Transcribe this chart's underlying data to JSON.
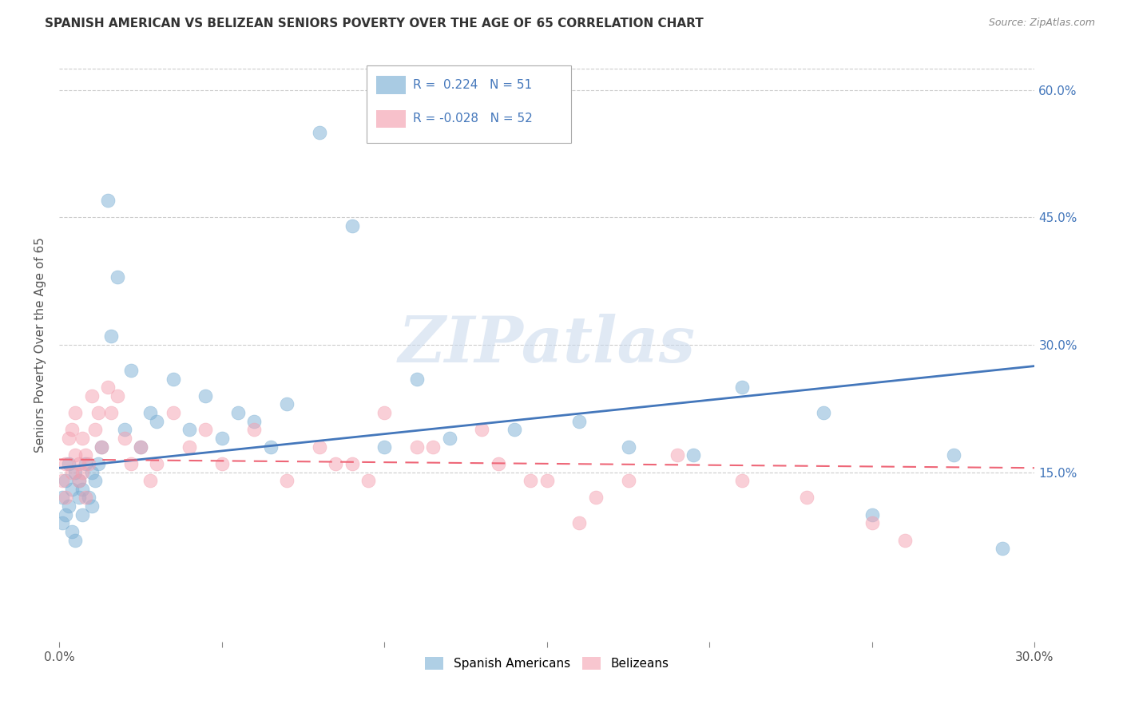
{
  "title": "SPANISH AMERICAN VS BELIZEAN SENIORS POVERTY OVER THE AGE OF 65 CORRELATION CHART",
  "source": "Source: ZipAtlas.com",
  "ylabel": "Seniors Poverty Over the Age of 65",
  "xlim": [
    0.0,
    0.3
  ],
  "ylim": [
    -0.05,
    0.65
  ],
  "ytick_vals": [
    0.15,
    0.3,
    0.45,
    0.6
  ],
  "ytick_labels": [
    "15.0%",
    "30.0%",
    "45.0%",
    "60.0%"
  ],
  "grid_color": "#cccccc",
  "background_color": "#ffffff",
  "watermark_text": "ZIPatlas",
  "legend_R_blue": "0.224",
  "legend_N_blue": "51",
  "legend_R_pink": "-0.028",
  "legend_N_pink": "52",
  "blue_color": "#7bafd4",
  "pink_color": "#f4a0b0",
  "blue_line_color": "#4477bb",
  "pink_line_color": "#ee6677",
  "spanish_x": [
    0.001,
    0.001,
    0.002,
    0.002,
    0.003,
    0.003,
    0.004,
    0.004,
    0.005,
    0.005,
    0.006,
    0.006,
    0.007,
    0.007,
    0.008,
    0.009,
    0.01,
    0.01,
    0.011,
    0.012,
    0.013,
    0.015,
    0.016,
    0.018,
    0.02,
    0.022,
    0.025,
    0.028,
    0.03,
    0.035,
    0.04,
    0.045,
    0.05,
    0.055,
    0.06,
    0.065,
    0.07,
    0.08,
    0.09,
    0.1,
    0.11,
    0.12,
    0.14,
    0.16,
    0.175,
    0.195,
    0.21,
    0.235,
    0.25,
    0.275,
    0.29
  ],
  "spanish_y": [
    0.12,
    0.09,
    0.14,
    0.1,
    0.16,
    0.11,
    0.13,
    0.08,
    0.15,
    0.07,
    0.12,
    0.14,
    0.1,
    0.13,
    0.16,
    0.12,
    0.15,
    0.11,
    0.14,
    0.16,
    0.18,
    0.47,
    0.31,
    0.38,
    0.2,
    0.27,
    0.18,
    0.22,
    0.21,
    0.26,
    0.2,
    0.24,
    0.19,
    0.22,
    0.21,
    0.18,
    0.23,
    0.55,
    0.44,
    0.18,
    0.26,
    0.19,
    0.2,
    0.21,
    0.18,
    0.17,
    0.25,
    0.22,
    0.1,
    0.17,
    0.06
  ],
  "belizean_x": [
    0.001,
    0.002,
    0.002,
    0.003,
    0.004,
    0.004,
    0.005,
    0.005,
    0.006,
    0.006,
    0.007,
    0.007,
    0.008,
    0.008,
    0.009,
    0.01,
    0.011,
    0.012,
    0.013,
    0.015,
    0.016,
    0.018,
    0.02,
    0.022,
    0.025,
    0.028,
    0.03,
    0.035,
    0.04,
    0.045,
    0.05,
    0.06,
    0.07,
    0.08,
    0.09,
    0.1,
    0.11,
    0.13,
    0.15,
    0.16,
    0.175,
    0.19,
    0.21,
    0.23,
    0.25,
    0.26,
    0.115,
    0.135,
    0.145,
    0.165,
    0.085,
    0.095
  ],
  "belizean_y": [
    0.14,
    0.16,
    0.12,
    0.19,
    0.15,
    0.2,
    0.17,
    0.22,
    0.16,
    0.14,
    0.19,
    0.15,
    0.17,
    0.12,
    0.16,
    0.24,
    0.2,
    0.22,
    0.18,
    0.25,
    0.22,
    0.24,
    0.19,
    0.16,
    0.18,
    0.14,
    0.16,
    0.22,
    0.18,
    0.2,
    0.16,
    0.2,
    0.14,
    0.18,
    0.16,
    0.22,
    0.18,
    0.2,
    0.14,
    0.09,
    0.14,
    0.17,
    0.14,
    0.12,
    0.09,
    0.07,
    0.18,
    0.16,
    0.14,
    0.12,
    0.16,
    0.14
  ]
}
